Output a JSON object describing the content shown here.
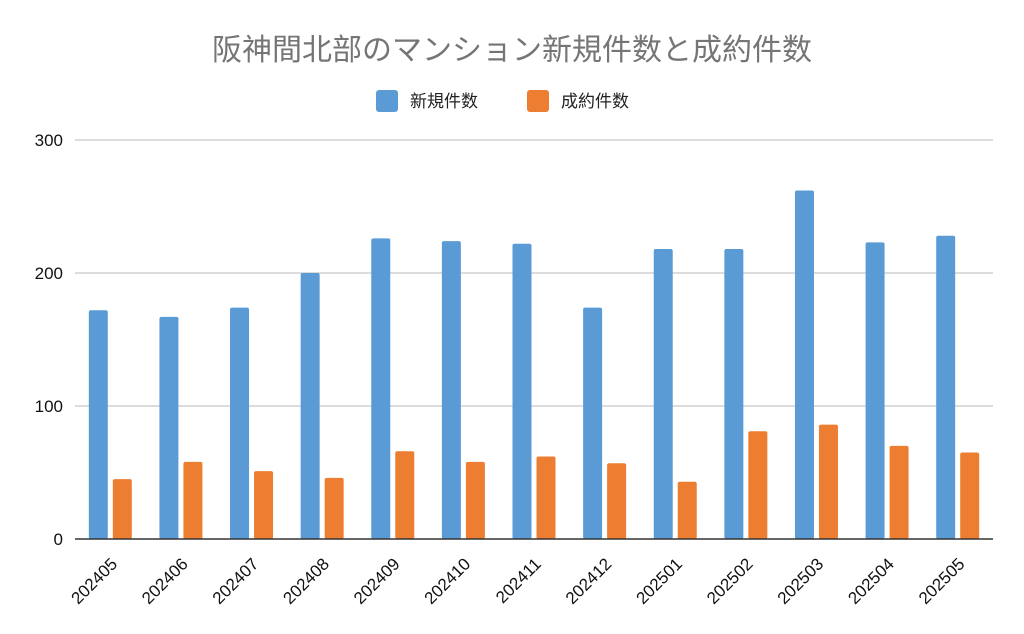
{
  "chart_data": {
    "type": "bar",
    "title": "阪神間北部のマンション新規件数と成約件数",
    "xlabel": "",
    "ylabel": "",
    "categories": [
      "202405",
      "202406",
      "202407",
      "202408",
      "202409",
      "202410",
      "202411",
      "202412",
      "202501",
      "202502",
      "202503",
      "202504",
      "202505"
    ],
    "series": [
      {
        "name": "新規件数",
        "color": "#5B9BD5",
        "values": [
          172,
          167,
          174,
          200,
          226,
          224,
          222,
          174,
          218,
          218,
          262,
          223,
          228
        ]
      },
      {
        "name": "成約件数",
        "color": "#ED7D31",
        "values": [
          45,
          58,
          51,
          46,
          66,
          58,
          62,
          57,
          43,
          81,
          86,
          70,
          65
        ]
      }
    ],
    "ylim": [
      0,
      300
    ],
    "yticks": [
      0,
      100,
      200,
      300
    ],
    "grid": true,
    "legend_position": "top"
  }
}
